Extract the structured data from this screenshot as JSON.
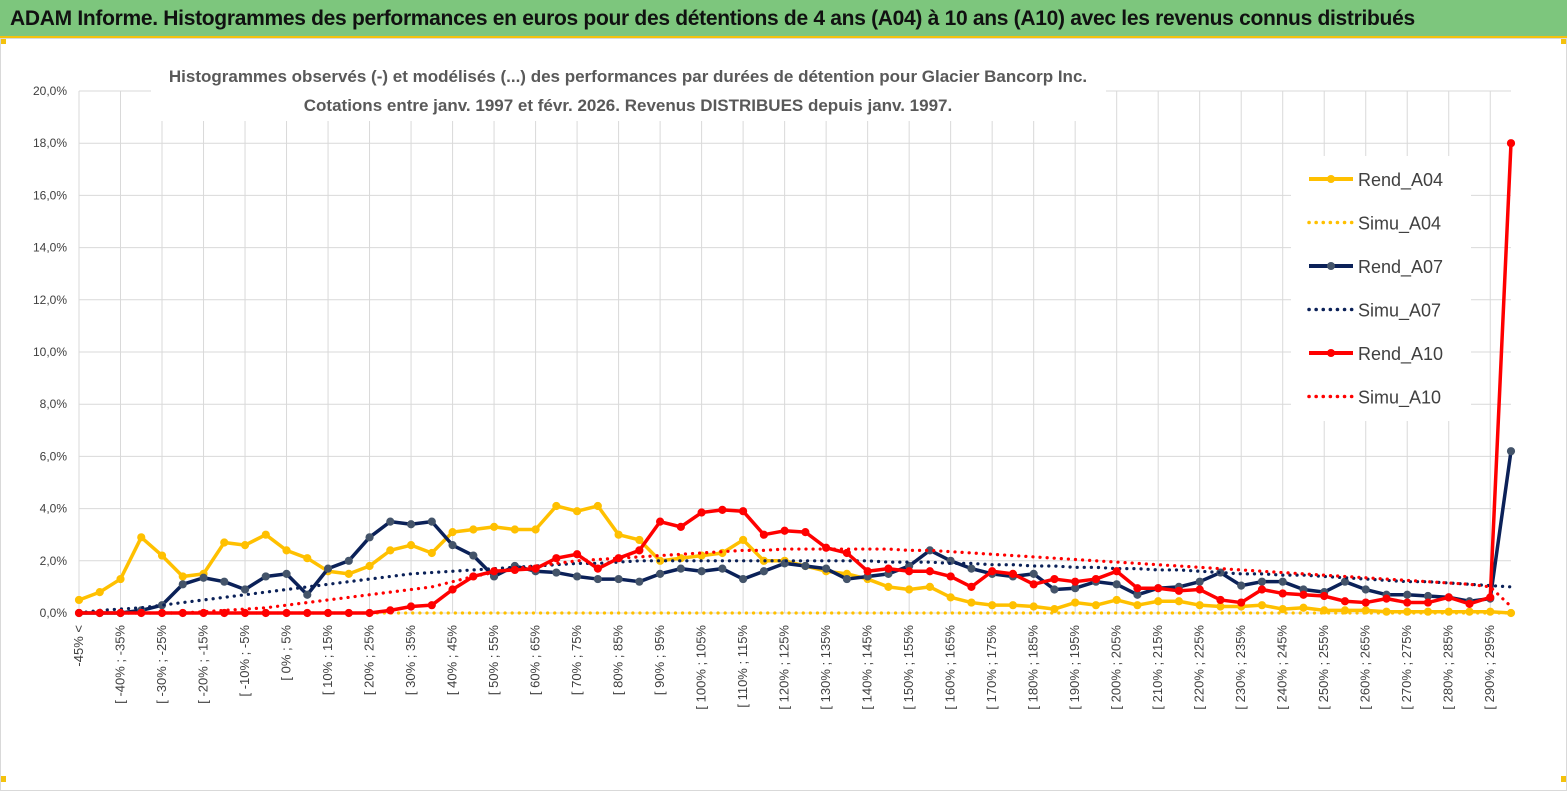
{
  "banner": {
    "title": "ADAM Informe. Histogrammes des performances en euros pour des détentions de 4 ans (A04) à 10 ans (A10) avec les revenus connus distribués"
  },
  "chart_data": {
    "type": "line",
    "title": "Histogrammes observés (-) et modélisés (...) des performances par durées de détention pour Glacier Bancorp Inc.",
    "subtitle": "Cotations entre janv. 1997 et févr. 2026. Revenus DISTRIBUES depuis janv. 1997.",
    "xlabel": "",
    "ylabel": "",
    "ylim": [
      0,
      20
    ],
    "yticks": [
      "0,0%",
      "2,0%",
      "4,0%",
      "6,0%",
      "8,0%",
      "10,0%",
      "12,0%",
      "14,0%",
      "16,0%",
      "18,0%",
      "20,0%"
    ],
    "grid": true,
    "legend_position": "right",
    "x_tick_labels": [
      "-45% <",
      "[ -40% ; -35%",
      "[ -30% ; -25%",
      "[ -20% ; -15%",
      "[ -10% ; -5%",
      "[ 0% ; 5%",
      "[ 10% ; 15%",
      "[ 20% ; 25%",
      "[ 30% ; 35%",
      "[ 40% ; 45%",
      "[ 50% ; 55%",
      "[ 60% ; 65%",
      "[ 70% ; 75%",
      "[ 80% ; 85%",
      "[ 90% ; 95%",
      "[ 100% ; 105%",
      "[ 110% ; 115%",
      "[ 120% ; 125%",
      "[ 130% ; 135%",
      "[ 140% ; 145%",
      "[ 150% ; 155%",
      "[ 160% ; 165%",
      "[ 170% ; 175%",
      "[ 180% ; 185%",
      "[ 190% ; 195%",
      "[ 200% ; 205%",
      "[ 210% ; 215%",
      "[ 220% ; 225%",
      "[ 230% ; 235%",
      "[ 240% ; 245%",
      "[ 250% ; 255%",
      "[ 260% ; 265%",
      "[ 270% ; 275%",
      "[ 280% ; 285%",
      "[ 290% ; 295%"
    ],
    "series": [
      {
        "name": "Rend_A04",
        "style": "solid",
        "color": "#ffc000",
        "values": [
          0.5,
          0.8,
          1.3,
          2.9,
          2.2,
          1.4,
          1.5,
          2.7,
          2.6,
          3.0,
          2.4,
          2.1,
          1.6,
          1.5,
          1.8,
          2.4,
          2.6,
          2.3,
          3.1,
          3.2,
          3.3,
          3.2,
          3.2,
          4.1,
          3.9,
          4.1,
          3.0,
          2.8,
          2.0,
          2.1,
          2.2,
          2.3,
          2.8,
          2.0,
          2.0,
          1.8,
          1.6,
          1.5,
          1.3,
          1.0,
          0.9,
          1.0,
          0.6,
          0.4,
          0.3,
          0.3,
          0.25,
          0.15,
          0.4,
          0.3,
          0.5,
          0.3,
          0.45,
          0.45,
          0.3,
          0.25,
          0.25,
          0.3,
          0.15,
          0.2,
          0.1,
          0.1,
          0.1,
          0.05,
          0.05,
          0.05,
          0.05,
          0.05,
          0.05,
          0.0
        ]
      },
      {
        "name": "Simu_A04",
        "style": "dotted",
        "color": "#ffc000",
        "values": [
          0,
          0,
          0,
          0,
          0,
          0,
          0,
          0,
          0,
          0,
          0,
          0,
          0,
          0,
          0,
          0,
          0,
          0,
          0,
          0,
          0,
          0,
          0,
          0,
          0,
          0,
          0,
          0,
          0,
          0,
          0,
          0,
          0,
          0,
          0,
          0,
          0,
          0,
          0,
          0,
          0,
          0,
          0,
          0,
          0,
          0,
          0,
          0,
          0,
          0,
          0,
          0,
          0,
          0,
          0,
          0,
          0,
          0,
          0,
          0,
          0,
          0,
          0,
          0,
          0,
          0,
          0,
          0,
          0,
          0
        ]
      },
      {
        "name": "Rend_A07",
        "style": "solid",
        "color": "#0b2158",
        "values": [
          0.0,
          0.0,
          0.0,
          0.1,
          0.3,
          1.1,
          1.35,
          1.2,
          0.9,
          1.4,
          1.5,
          0.7,
          1.7,
          2.0,
          2.9,
          3.5,
          3.4,
          3.5,
          2.6,
          2.2,
          1.4,
          1.8,
          1.6,
          1.55,
          1.4,
          1.3,
          1.3,
          1.2,
          1.5,
          1.7,
          1.6,
          1.7,
          1.3,
          1.6,
          1.9,
          1.8,
          1.7,
          1.3,
          1.4,
          1.5,
          1.8,
          2.4,
          2.0,
          1.7,
          1.5,
          1.4,
          1.5,
          0.9,
          0.95,
          1.2,
          1.1,
          0.7,
          0.95,
          1.0,
          1.2,
          1.55,
          1.05,
          1.2,
          1.2,
          0.9,
          0.8,
          1.2,
          0.9,
          0.7,
          0.7,
          0.65,
          0.6,
          0.45,
          0.55,
          6.2
        ]
      },
      {
        "name": "Simu_A07",
        "style": "dotted",
        "color": "#0b2158",
        "values": [
          0.0,
          0.1,
          0.15,
          0.2,
          0.3,
          0.4,
          0.5,
          0.6,
          0.7,
          0.8,
          0.9,
          1.0,
          1.1,
          1.2,
          1.3,
          1.4,
          1.5,
          1.55,
          1.6,
          1.65,
          1.7,
          1.75,
          1.8,
          1.85,
          1.9,
          1.9,
          1.95,
          2.0,
          2.0,
          2.0,
          2.0,
          2.0,
          2.0,
          2.0,
          2.0,
          2.0,
          2.0,
          2.0,
          2.0,
          1.95,
          1.95,
          1.95,
          1.9,
          1.9,
          1.85,
          1.85,
          1.8,
          1.8,
          1.75,
          1.75,
          1.7,
          1.7,
          1.65,
          1.65,
          1.6,
          1.55,
          1.5,
          1.5,
          1.45,
          1.45,
          1.4,
          1.35,
          1.3,
          1.25,
          1.2,
          1.2,
          1.15,
          1.1,
          1.05,
          1.0
        ]
      },
      {
        "name": "Rend_A10",
        "style": "solid",
        "color": "#ff0000",
        "values": [
          0.0,
          0.0,
          0.0,
          0.0,
          0.0,
          0.0,
          0.0,
          0.0,
          0.0,
          0.0,
          0.0,
          0.0,
          0.0,
          0.0,
          0.0,
          0.1,
          0.25,
          0.3,
          0.9,
          1.4,
          1.6,
          1.65,
          1.7,
          2.1,
          2.25,
          1.7,
          2.1,
          2.4,
          3.5,
          3.3,
          3.85,
          3.95,
          3.9,
          3.0,
          3.15,
          3.1,
          2.5,
          2.3,
          1.6,
          1.7,
          1.6,
          1.6,
          1.4,
          1.0,
          1.6,
          1.5,
          1.1,
          1.3,
          1.2,
          1.3,
          1.6,
          0.95,
          0.95,
          0.85,
          0.9,
          0.5,
          0.4,
          0.9,
          0.75,
          0.7,
          0.65,
          0.45,
          0.4,
          0.55,
          0.4,
          0.4,
          0.6,
          0.35,
          0.6,
          18.0
        ]
      },
      {
        "name": "Simu_A10",
        "style": "dotted",
        "color": "#ff0000",
        "values": [
          0.0,
          0.0,
          0.0,
          0.0,
          0.0,
          0.0,
          0.05,
          0.1,
          0.15,
          0.2,
          0.3,
          0.4,
          0.5,
          0.6,
          0.7,
          0.8,
          0.9,
          1.0,
          1.2,
          1.4,
          1.55,
          1.7,
          1.8,
          1.9,
          2.0,
          2.05,
          2.1,
          2.15,
          2.2,
          2.25,
          2.3,
          2.35,
          2.4,
          2.4,
          2.45,
          2.45,
          2.45,
          2.45,
          2.45,
          2.45,
          2.4,
          2.4,
          2.35,
          2.3,
          2.25,
          2.2,
          2.15,
          2.1,
          2.05,
          2.0,
          1.95,
          1.9,
          1.85,
          1.8,
          1.75,
          1.7,
          1.65,
          1.6,
          1.55,
          1.5,
          1.45,
          1.4,
          1.35,
          1.3,
          1.25,
          1.2,
          1.15,
          1.1,
          1.0,
          0.25
        ]
      }
    ]
  }
}
